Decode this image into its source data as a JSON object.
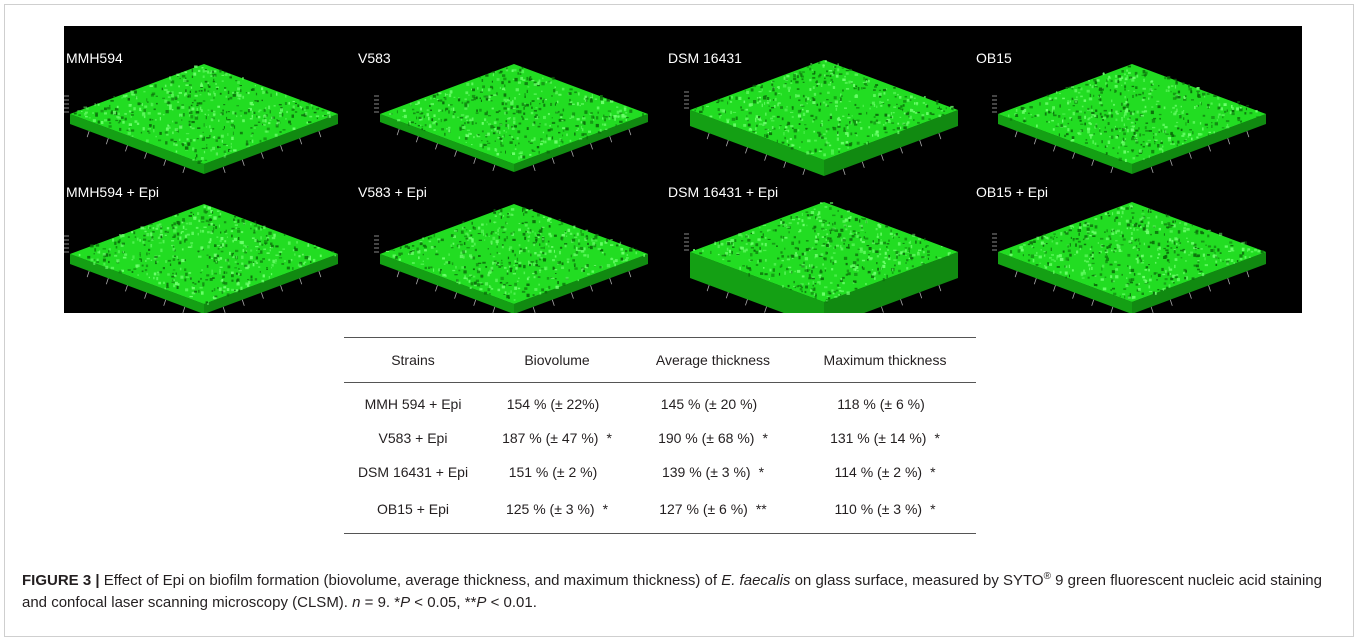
{
  "panels": [
    {
      "label": "MMH594"
    },
    {
      "label": "V583"
    },
    {
      "label": "DSM 16431"
    },
    {
      "label": "OB15"
    },
    {
      "label": "MMH594  + Epi"
    },
    {
      "label": "V583 + Epi"
    },
    {
      "label": "DSM 16431 + Epi"
    },
    {
      "label": "OB15 + Epi"
    }
  ],
  "panel_color": "#22dd22",
  "table": {
    "headers": [
      "Strains",
      "Biovolume",
      "Average thickness",
      "Maximum thickness"
    ],
    "rows": [
      {
        "strain": "MMH 594 + Epi",
        "bv": "154 % (± 22%)",
        "bv_sig": "",
        "at": "145 % (± 20 %)",
        "at_sig": "",
        "mt": "118 % (± 6 %)",
        "mt_sig": ""
      },
      {
        "strain": "V583 + Epi",
        "bv": "187 % (± 47 %)",
        "bv_sig": "*",
        "at": "190 % (± 68 %)",
        "at_sig": "*",
        "mt": "131 % (± 14 %)",
        "mt_sig": "*"
      },
      {
        "strain": "DSM 16431 + Epi",
        "bv": "151 % (± 2 %)",
        "bv_sig": "",
        "at": "139 % (± 3 %)",
        "at_sig": "*",
        "mt": "114 % (± 2 %)",
        "mt_sig": "*"
      },
      {
        "strain": "OB15 + Epi",
        "bv": "125 % (± 3 %)",
        "bv_sig": "*",
        "at": "127 % (± 6 %)",
        "at_sig": "**",
        "mt": "110 % (± 3 %)",
        "mt_sig": "*"
      }
    ]
  },
  "caption": {
    "figno": "FIGURE 3 |",
    "t1": " Effect of Epi on biofilm formation (biovolume, average thickness, and maximum thickness) of ",
    "species": "E. faecalis",
    "t2": " on glass surface, measured by SYTO",
    "reg": "®",
    "t3": " 9 green fluorescent nucleic acid staining and confocal laser scanning microscopy (CLSM). ",
    "n_var": "n",
    "t4": " = 9. *",
    "p1": "P",
    "t5": " < 0.05, **",
    "p2": "P",
    "t6": " < 0.01."
  }
}
